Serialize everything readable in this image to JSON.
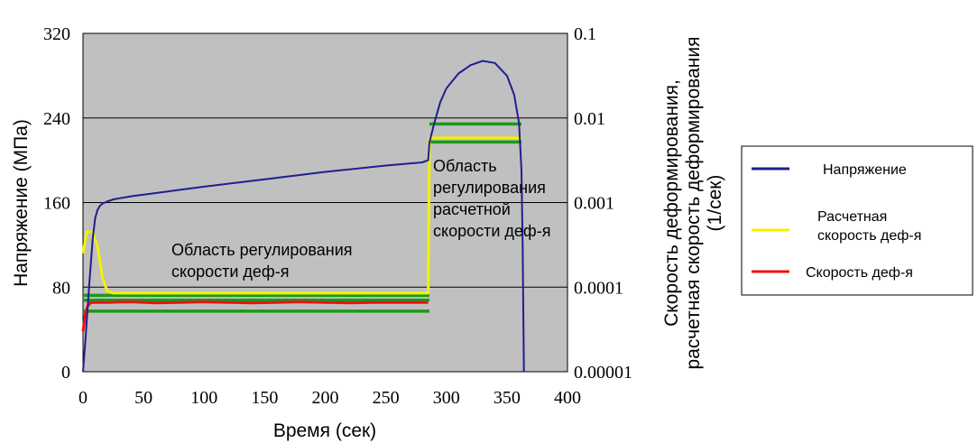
{
  "chart_data": {
    "type": "line",
    "xlabel": "Время (сек)",
    "ylabel": "Напряжение (МПа)",
    "y2label": [
      "Скорость деформирования,",
      "расчетная скорость деформирования",
      "(1/сек)"
    ],
    "xlim": [
      0,
      400
    ],
    "ylim": [
      0,
      320
    ],
    "y2lim": [
      1e-05,
      0.1
    ],
    "y2_scale": "log",
    "grid": "horizontal",
    "legend_position": "right",
    "x_ticks": [
      "0",
      "50",
      "100",
      "150",
      "200",
      "250",
      "300",
      "350",
      "400"
    ],
    "y_ticks": [
      "0",
      "80",
      "160",
      "240",
      "320"
    ],
    "y2_ticks": [
      "0.00001",
      "0.0001",
      "0.001",
      "0.01",
      "0.1"
    ],
    "annotations": [
      [
        "Область регулирования",
        "скорости деф-я"
      ],
      [
        "Область",
        "регулирования",
        "расчетной",
        "скорости деф-я"
      ]
    ],
    "series": [
      {
        "name": "Напряжение",
        "color": "#1f1f8f",
        "x": [
          0,
          2,
          5,
          8,
          10,
          12,
          14,
          16,
          18,
          20,
          25,
          30,
          40,
          60,
          80,
          100,
          150,
          200,
          250,
          280,
          285,
          286,
          290,
          295,
          300,
          310,
          320,
          330,
          340,
          350,
          356,
          360,
          362,
          363,
          364
        ],
        "y": [
          0,
          30,
          80,
          125,
          145,
          153,
          157,
          159,
          160,
          161,
          163,
          164,
          166,
          169,
          172,
          175,
          182,
          189,
          195,
          198,
          200,
          217,
          235,
          255,
          268,
          282,
          290,
          294,
          292,
          280,
          262,
          235,
          190,
          120,
          0
        ]
      },
      {
        "name": "Расчетная скорость деф-я",
        "color": "#f2f200",
        "x": [
          0,
          3,
          8,
          12,
          16,
          20,
          25,
          50,
          100,
          150,
          200,
          250,
          285,
          286,
          300,
          362
        ],
        "y": [
          0.00025,
          0.00045,
          0.00045,
          0.0003,
          0.00013,
          9e-05,
          8.5e-05,
          8.5e-05,
          8.5e-05,
          8.5e-05,
          8.5e-05,
          8.5e-05,
          8.5e-05,
          0.0058,
          0.0058,
          0.0058
        ]
      },
      {
        "name": "Скорость деф-я",
        "color": "#ee1111",
        "x": [
          0,
          2,
          4,
          6,
          8,
          10,
          20,
          40,
          60,
          80,
          100,
          120,
          140,
          160,
          180,
          200,
          220,
          240,
          260,
          285
        ],
        "y": [
          3e-05,
          5e-05,
          6e-05,
          6.5e-05,
          6.6e-05,
          6.6e-05,
          6.6e-05,
          6.7e-05,
          6.5e-05,
          6.6e-05,
          6.7e-05,
          6.6e-05,
          6.5e-05,
          6.6e-05,
          6.7e-05,
          6.6e-05,
          6.5e-05,
          6.6e-05,
          6.6e-05,
          6.6e-05
        ]
      }
    ],
    "control_band_lines": {
      "color": "#1a9a1a",
      "segments": [
        {
          "x": [
            0,
            286
          ],
          "y": 8e-05
        },
        {
          "x": [
            0,
            286
          ],
          "y": 7e-05
        },
        {
          "x": [
            0,
            286
          ],
          "y": 5.2e-05
        },
        {
          "x": [
            286,
            362
          ],
          "y": 0.0085
        },
        {
          "x": [
            286,
            362
          ],
          "y": 0.0052
        }
      ]
    }
  }
}
